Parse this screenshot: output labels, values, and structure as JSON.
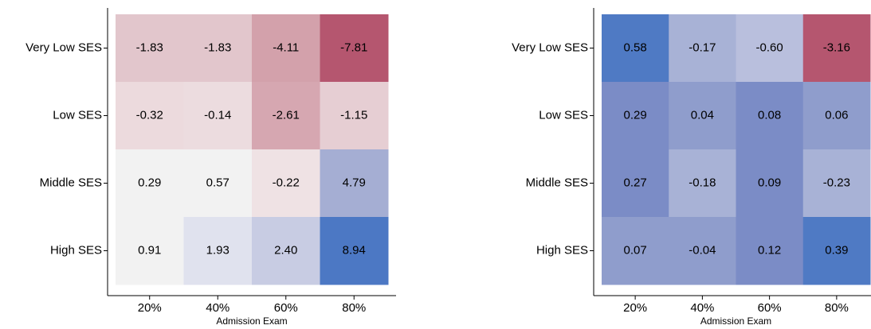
{
  "chart_data": [
    {
      "type": "heatmap",
      "x_label": "Admission Exam",
      "categories": [
        "20%",
        "40%",
        "60%",
        "80%"
      ],
      "rows": [
        "Very Low SES",
        "Low SES",
        "Middle SES",
        "High SES"
      ],
      "values": [
        [
          -1.83,
          -1.83,
          -4.11,
          -7.81
        ],
        [
          -0.32,
          -0.14,
          -2.61,
          -1.15
        ],
        [
          0.29,
          0.57,
          -0.22,
          4.79
        ],
        [
          0.91,
          1.93,
          2.4,
          8.94
        ]
      ],
      "value_labels": [
        [
          "-1.83",
          "-1.83",
          "-4.11",
          "-7.81"
        ],
        [
          "-0.32",
          "-0.14",
          "-2.61",
          "-1.15"
        ],
        [
          "0.29",
          "0.57",
          "-0.22",
          "4.79"
        ],
        [
          "0.91",
          "1.93",
          "2.40",
          "8.94"
        ]
      ],
      "colors": [
        [
          "#e2c6cc",
          "#e2c6cc",
          "#d3a1ab",
          "#b5566f"
        ],
        [
          "#ecdadd",
          "#ecdcdf",
          "#d6a7b1",
          "#e6ced3"
        ],
        [
          "#f2f2f2",
          "#f2f2f2",
          "#efe2e4",
          "#a5aed3"
        ],
        [
          "#f2f2f2",
          "#e0e2ee",
          "#c8cce3",
          "#4c78c4"
        ]
      ]
    },
    {
      "type": "heatmap",
      "x_label": "Admission Exam",
      "categories": [
        "20%",
        "40%",
        "60%",
        "80%"
      ],
      "rows": [
        "Very Low SES",
        "Low SES",
        "Middle SES",
        "High SES"
      ],
      "values": [
        [
          0.58,
          -0.17,
          -0.6,
          -3.16
        ],
        [
          0.29,
          0.04,
          0.08,
          0.06
        ],
        [
          0.27,
          -0.18,
          0.09,
          -0.23
        ],
        [
          0.07,
          -0.04,
          0.12,
          0.39
        ]
      ],
      "value_labels": [
        [
          "0.58",
          "-0.17",
          "-0.60",
          "-3.16"
        ],
        [
          "0.29",
          "0.04",
          "0.08",
          "0.06"
        ],
        [
          "0.27",
          "-0.18",
          "0.09",
          "-0.23"
        ],
        [
          "0.07",
          "-0.04",
          "0.12",
          "0.39"
        ]
      ],
      "colors": [
        [
          "#4f7ac4",
          "#a8b2d6",
          "#b9bfdd",
          "#b5566f"
        ],
        [
          "#7b8cc6",
          "#8f9dcc",
          "#7b8cc6",
          "#8f9dcc"
        ],
        [
          "#7b8cc6",
          "#a8b2d6",
          "#7b8cc6",
          "#a8b2d6"
        ],
        [
          "#8f9dcc",
          "#8f9dcc",
          "#7b8cc6",
          "#4f7ac4"
        ]
      ]
    }
  ]
}
